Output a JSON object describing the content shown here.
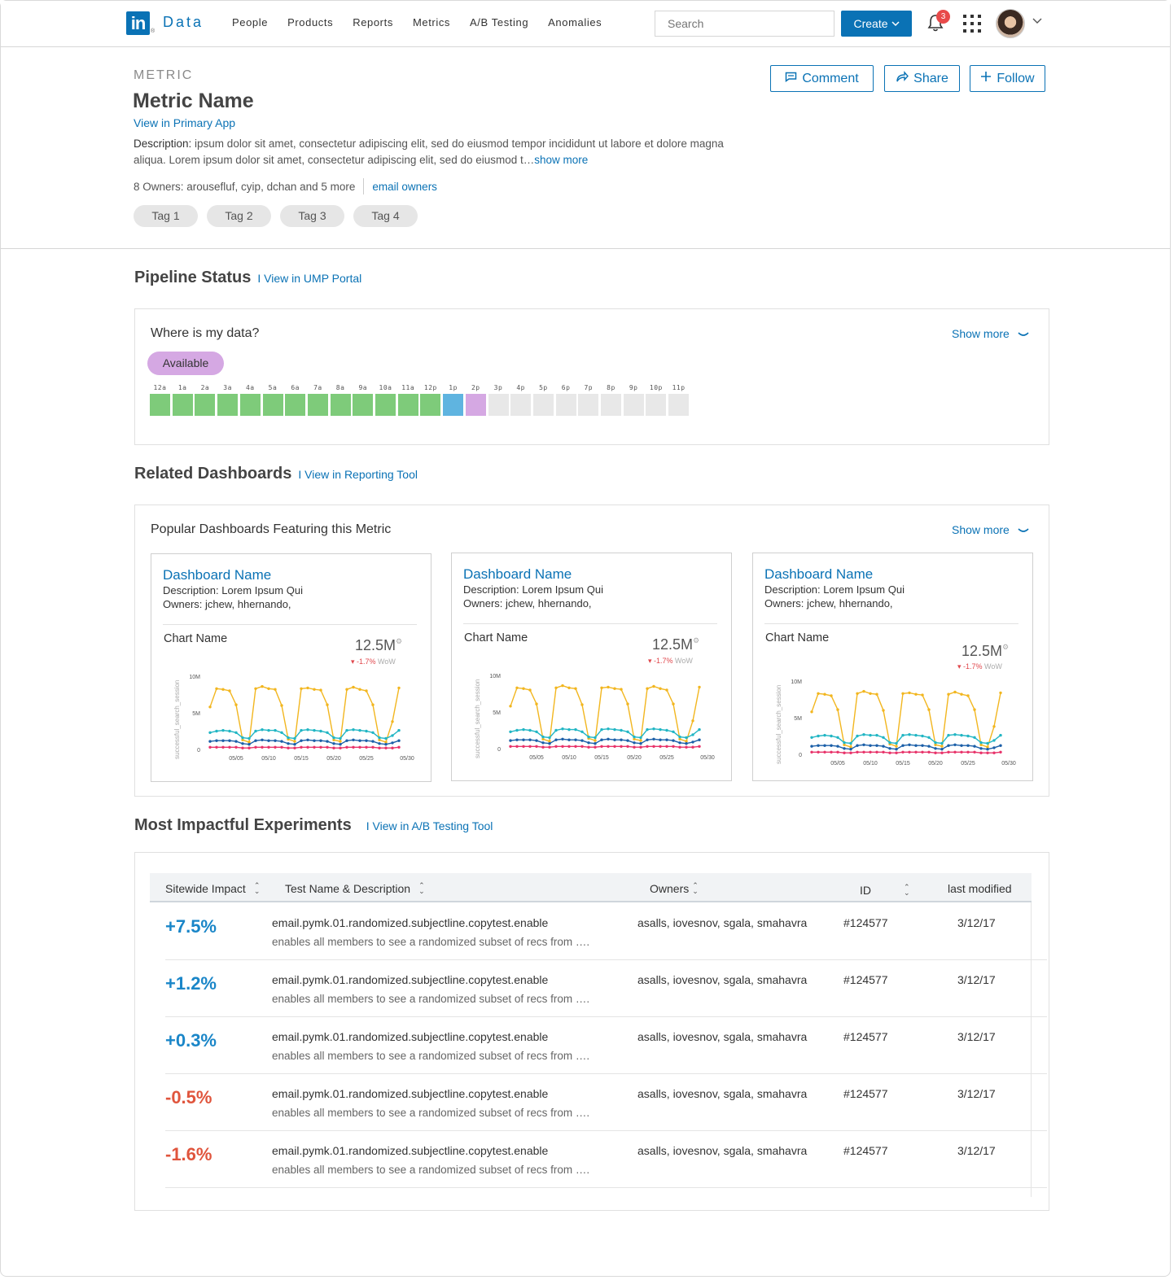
{
  "nav": {
    "logo_text": "Data",
    "logo_mark": "in",
    "logo_reg": "®",
    "items": [
      "People",
      "Products",
      "Reports",
      "Metrics",
      "A/B Testing",
      "Anomalies"
    ],
    "search_placeholder": "Search",
    "create_label": "Create",
    "notification_count": "3"
  },
  "metric": {
    "kicker": "METRIC",
    "title": "Metric Name",
    "primary_link": "View in Primary App",
    "description_label": "Description:",
    "description_line1": "ipsum dolor sit amet, consectetur adipiscing elit, sed do eiusmod tempor incididunt ut labore et dolore magna",
    "description_line2": "aliqua. Lorem ipsum dolor sit amet, consectetur adipiscing elit, sed do eiusmod t…",
    "show_more": "show more",
    "owners_text": "8 Owners: arousefluf, cyip, dchan and 5 more",
    "email_owners": "email owners",
    "tags": [
      "Tag 1",
      "Tag 2",
      "Tag 3",
      "Tag 4"
    ],
    "actions": {
      "comment": "Comment",
      "share": "Share",
      "follow": "Follow"
    }
  },
  "pipeline": {
    "heading": "Pipeline Status",
    "link": "I View in UMP Portal",
    "card_title": "Where is my data?",
    "show_more": "Show more",
    "status": "Available",
    "hours": [
      "12a",
      "1a",
      "2a",
      "3a",
      "4a",
      "5a",
      "6a",
      "7a",
      "8a",
      "9a",
      "10a",
      "11a",
      "12p",
      "1p",
      "2p",
      "3p",
      "4p",
      "5p",
      "6p",
      "7p",
      "8p",
      "9p",
      "10p",
      "11p"
    ],
    "hour_states": [
      "done",
      "done",
      "done",
      "done",
      "done",
      "done",
      "done",
      "done",
      "done",
      "done",
      "done",
      "done",
      "done",
      "current",
      "available",
      "empty",
      "empty",
      "empty",
      "empty",
      "empty",
      "empty",
      "empty",
      "empty",
      "empty"
    ],
    "state_colors": {
      "done": "#7ecb7a",
      "current": "#5fb4e0",
      "available": "#d5a8e3",
      "empty": "#e8e8e8"
    }
  },
  "dashboards": {
    "heading": "Related Dashboards",
    "link": "I View in Reporting Tool",
    "card_title": "Popular Dashboards Featuring this Metric",
    "show_more": "Show more",
    "items": [
      {
        "name": "Dashboard Name",
        "description": "Description: Lorem Ipsum Qui",
        "owners": "Owners: jchew, hhernando,",
        "chart_name": "Chart Name",
        "value": "12.5M",
        "change": "▾ -1.7%",
        "change_unit": "WoW"
      },
      {
        "name": "Dashboard Name",
        "description": "Description: Lorem Ipsum Qui",
        "owners": "Owners: jchew, hhernando,",
        "chart_name": "Chart Name",
        "value": "12.5M",
        "change": "▾ -1.7%",
        "change_unit": "WoW"
      },
      {
        "name": "Dashboard Name",
        "description": "Description: Lorem Ipsum Qui",
        "owners": "Owners: jchew, hhernando,",
        "chart_name": "Chart Name",
        "value": "12.5M",
        "change": "▾ -1.7%",
        "change_unit": "WoW"
      }
    ]
  },
  "chart_data": {
    "type": "line",
    "ylabel": "successful_search_session",
    "yticks": [
      "10M",
      "5M",
      "0"
    ],
    "ylim": [
      0,
      10
    ],
    "xticks": [
      "05/05",
      "05/10",
      "05/15",
      "05/20",
      "05/25",
      "05/30"
    ],
    "grid": false,
    "series": [
      {
        "color": "#f2b61f",
        "values": [
          5.8,
          8.3,
          8.2,
          8.0,
          6.1,
          1.3,
          1.0,
          8.3,
          8.6,
          8.3,
          8.2,
          6.0,
          1.4,
          1.1,
          8.3,
          8.4,
          8.2,
          8.1,
          6.1,
          1.3,
          1.1,
          8.2,
          8.5,
          8.2,
          8.0,
          6.1,
          1.3,
          1.0,
          3.8,
          8.4
        ]
      },
      {
        "color": "#22b6c4",
        "values": [
          2.3,
          2.5,
          2.6,
          2.5,
          2.3,
          1.6,
          1.5,
          2.5,
          2.7,
          2.6,
          2.6,
          2.3,
          1.6,
          1.5,
          2.6,
          2.7,
          2.6,
          2.5,
          2.3,
          1.6,
          1.5,
          2.6,
          2.7,
          2.6,
          2.5,
          2.3,
          1.6,
          1.5,
          1.9,
          2.6
        ]
      },
      {
        "color": "#1b5fa8",
        "values": [
          1.1,
          1.2,
          1.2,
          1.2,
          1.1,
          0.8,
          0.7,
          1.2,
          1.3,
          1.2,
          1.2,
          1.1,
          0.8,
          0.7,
          1.2,
          1.3,
          1.2,
          1.2,
          1.1,
          0.8,
          0.7,
          1.2,
          1.3,
          1.2,
          1.2,
          1.1,
          0.8,
          0.7,
          0.9,
          1.2
        ]
      },
      {
        "color": "#e8336a",
        "values": [
          0.3,
          0.3,
          0.3,
          0.3,
          0.3,
          0.2,
          0.2,
          0.3,
          0.3,
          0.3,
          0.3,
          0.3,
          0.2,
          0.2,
          0.3,
          0.3,
          0.3,
          0.3,
          0.3,
          0.2,
          0.2,
          0.3,
          0.3,
          0.3,
          0.3,
          0.3,
          0.2,
          0.2,
          0.2,
          0.3
        ]
      }
    ]
  },
  "experiments": {
    "heading": "Most Impactful Experiments",
    "link": "I View in A/B Testing Tool",
    "columns": {
      "impact": "Sitewide Impact",
      "test": "Test Name & Description",
      "owners": "Owners",
      "id": "ID",
      "modified": "last modified"
    },
    "rows": [
      {
        "impact": "+7.5%",
        "positive": true,
        "name": "email.pymk.01.randomized.subjectline.copytest.enable",
        "description": "enables all members to see a randomized subset of recs from ….",
        "owners": "asalls, iovesnov, sgala, smahavra",
        "id": "#124577",
        "modified": "3/12/17"
      },
      {
        "impact": "+1.2%",
        "positive": true,
        "name": "email.pymk.01.randomized.subjectline.copytest.enable",
        "description": "enables all members to see a randomized subset of recs from ….",
        "owners": "asalls, iovesnov, sgala, smahavra",
        "id": "#124577",
        "modified": "3/12/17"
      },
      {
        "impact": "+0.3%",
        "positive": true,
        "name": "email.pymk.01.randomized.subjectline.copytest.enable",
        "description": "enables all members to see a randomized subset of recs from ….",
        "owners": "asalls, iovesnov, sgala, smahavra",
        "id": "#124577",
        "modified": "3/12/17"
      },
      {
        "impact": "-0.5%",
        "positive": false,
        "name": "email.pymk.01.randomized.subjectline.copytest.enable",
        "description": "enables all members to see a randomized subset of recs from ….",
        "owners": "asalls, iovesnov, sgala, smahavra",
        "id": "#124577",
        "modified": "3/12/17"
      },
      {
        "impact": "-1.6%",
        "positive": false,
        "name": "email.pymk.01.randomized.subjectline.copytest.enable",
        "description": "enables all members to see a randomized subset of recs from ….",
        "owners": "asalls, iovesnov, sgala, smahavra",
        "id": "#124577",
        "modified": "3/12/17"
      }
    ],
    "colors": {
      "positive": "#1a86c8",
      "negative": "#e0553d"
    }
  }
}
